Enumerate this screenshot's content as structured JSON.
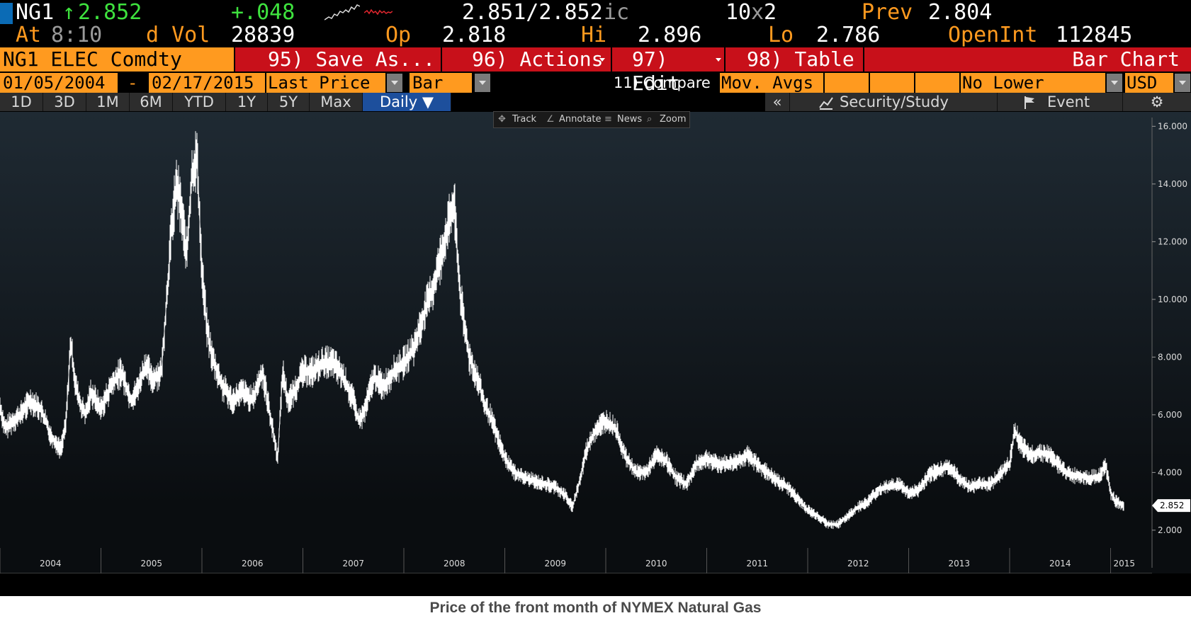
{
  "quote": {
    "ticker": "NG1",
    "arrow": "↑",
    "last": "2.852",
    "change": "+.048",
    "bid_ask": "2.851/2.852",
    "bid_ask_suffix": "ic",
    "size": "10",
    "size_x": "x",
    "size2": "2",
    "prev_label": "Prev",
    "prev": "2.804",
    "at_label": "At",
    "time": "8:10",
    "vol_label": "d Vol",
    "volume": "28839",
    "op_label": "Op",
    "open": "2.818",
    "hi_label": "Hi",
    "high": "2.896",
    "lo_label": "Lo",
    "low": "2.786",
    "oi_label": "OpenInt",
    "open_interest": "112845"
  },
  "menu": {
    "security": "NG1 ELEC Comdty",
    "save_as": "95) Save As...",
    "actions": "96) Actions",
    "edit": "97) Edit",
    "table": "98) Table",
    "chart_type": "Bar Chart"
  },
  "params": {
    "start_date": "01/05/2004",
    "dash": "-",
    "end_date": "02/17/2015",
    "price_field": "Last Price",
    "style": "Bar",
    "compare": "11) Compare",
    "mov_avgs": "Mov. Avgs",
    "lower_chart": "No Lower Chart",
    "currency": "USD"
  },
  "range_tabs": [
    "1D",
    "3D",
    "1M",
    "6M",
    "YTD",
    "1Y",
    "5Y",
    "Max"
  ],
  "frequency": "Daily ▼",
  "right_tabs": {
    "collapse": "«",
    "security_study": "Security/Study",
    "event": "Event",
    "settings": "⚙"
  },
  "chart_toolbar": {
    "track": "Track",
    "annotate": "Annotate",
    "news": "News",
    "zoom": "Zoom"
  },
  "caption": "Price of the front month of NYMEX Natural Gas",
  "colors": {
    "background": "#000000",
    "amber": "#ff9a1f",
    "menu_red": "#c8101a",
    "up_green": "#3ee23e",
    "active_tab": "#1d4f9c"
  },
  "chart_data": {
    "type": "line",
    "title": "",
    "xlabel": "",
    "ylabel": "",
    "ylim": [
      0.5,
      16.5
    ],
    "xlim": [
      2004.0,
      2015.27
    ],
    "y_ticks": [
      "16.000",
      "14.000",
      "12.000",
      "10.000",
      "8.000",
      "6.000",
      "4.000",
      "2.000"
    ],
    "y_tick_values": [
      16,
      14,
      12,
      10,
      8,
      6,
      4,
      2
    ],
    "x_ticks": [
      "2004",
      "2005",
      "2006",
      "2007",
      "2008",
      "2009",
      "2010",
      "2011",
      "2012",
      "2013",
      "2014",
      "2015"
    ],
    "last_value_label": "2.852",
    "last_value": 2.852,
    "grid": false,
    "series": [
      {
        "x": [
          2004.0,
          2004.05,
          2004.1,
          2004.2,
          2004.3,
          2004.4,
          2004.45,
          2004.5,
          2004.6,
          2004.65,
          2004.7,
          2004.75,
          2004.8,
          2004.85,
          2004.9,
          2004.95,
          2005.0,
          2005.1,
          2005.2,
          2005.3,
          2005.35,
          2005.45,
          2005.5,
          2005.6,
          2005.65,
          2005.7,
          2005.75,
          2005.8,
          2005.85,
          2005.9,
          2005.95,
          2006.0,
          2006.05,
          2006.1,
          2006.2,
          2006.3,
          2006.4,
          2006.5,
          2006.6,
          2006.7,
          2006.75,
          2006.8,
          2006.85,
          2006.9,
          2007.0,
          2007.1,
          2007.2,
          2007.3,
          2007.4,
          2007.5,
          2007.55,
          2007.6,
          2007.7,
          2007.8,
          2007.9,
          2008.0,
          2008.1,
          2008.2,
          2008.3,
          2008.4,
          2008.45,
          2008.5,
          2008.55,
          2008.6,
          2008.65,
          2008.7,
          2008.75,
          2008.8,
          2008.85,
          2008.9,
          2008.95,
          2009.0,
          2009.1,
          2009.2,
          2009.3,
          2009.4,
          2009.5,
          2009.6,
          2009.67,
          2009.75,
          2009.8,
          2009.9,
          2010.0,
          2010.1,
          2010.2,
          2010.3,
          2010.4,
          2010.5,
          2010.6,
          2010.7,
          2010.8,
          2010.9,
          2011.0,
          2011.1,
          2011.2,
          2011.3,
          2011.4,
          2011.5,
          2011.6,
          2011.7,
          2011.8,
          2011.9,
          2012.0,
          2012.1,
          2012.2,
          2012.3,
          2012.4,
          2012.5,
          2012.6,
          2012.7,
          2012.8,
          2012.9,
          2013.0,
          2013.1,
          2013.2,
          2013.3,
          2013.4,
          2013.5,
          2013.6,
          2013.7,
          2013.8,
          2013.9,
          2014.0,
          2014.05,
          2014.1,
          2014.2,
          2014.3,
          2014.4,
          2014.5,
          2014.6,
          2014.7,
          2014.8,
          2014.9,
          2014.95,
          2015.0,
          2015.05,
          2015.1,
          2015.13
        ],
        "y": [
          6.3,
          5.5,
          5.7,
          6.0,
          6.5,
          6.2,
          5.8,
          5.3,
          4.8,
          5.6,
          8.5,
          7.0,
          6.3,
          6.0,
          6.8,
          6.5,
          6.2,
          7.0,
          7.5,
          6.5,
          6.8,
          7.8,
          7.2,
          7.5,
          10.0,
          12.5,
          14.0,
          13.0,
          11.5,
          14.3,
          15.0,
          11.0,
          9.0,
          8.0,
          7.0,
          6.5,
          6.8,
          6.5,
          7.5,
          5.5,
          4.5,
          7.5,
          6.5,
          6.7,
          7.5,
          7.5,
          7.8,
          7.8,
          7.3,
          6.5,
          5.8,
          6.0,
          7.3,
          7.0,
          7.5,
          7.8,
          8.3,
          9.5,
          10.5,
          12.0,
          12.7,
          13.3,
          10.5,
          9.0,
          8.0,
          7.5,
          7.0,
          6.3,
          6.0,
          5.5,
          5.0,
          4.5,
          4.0,
          3.8,
          3.7,
          3.6,
          3.5,
          3.2,
          2.8,
          3.8,
          4.7,
          5.5,
          5.8,
          5.5,
          4.5,
          4.0,
          4.0,
          4.6,
          4.4,
          3.8,
          3.6,
          4.3,
          4.5,
          4.3,
          4.3,
          4.4,
          4.6,
          4.3,
          4.0,
          3.7,
          3.5,
          3.1,
          2.7,
          2.5,
          2.2,
          2.2,
          2.5,
          2.8,
          3.0,
          3.4,
          3.5,
          3.6,
          3.3,
          3.4,
          3.9,
          4.1,
          4.2,
          3.8,
          3.5,
          3.6,
          3.6,
          3.9,
          4.3,
          5.5,
          5.0,
          4.6,
          4.7,
          4.6,
          4.2,
          3.9,
          3.9,
          3.8,
          3.9,
          4.3,
          3.3,
          3.0,
          2.9,
          2.852
        ]
      }
    ]
  }
}
